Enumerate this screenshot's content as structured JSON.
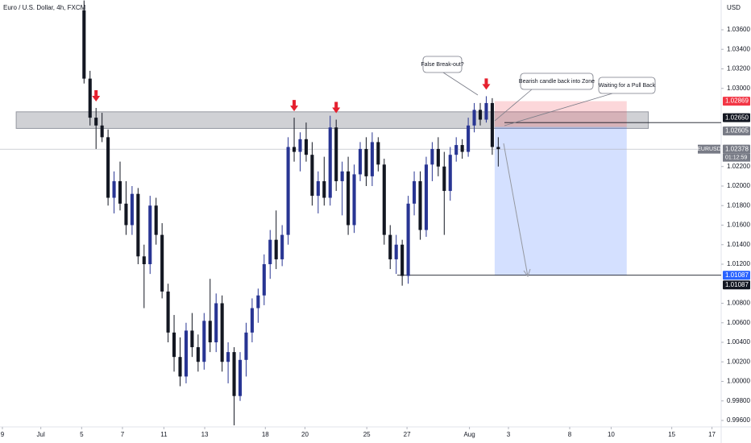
{
  "chart_data": {
    "type": "candlestick",
    "title": "Euro / U.S. Dollar, 4h, FXCM",
    "currency": "USD",
    "symbol": "EURUSD",
    "countdown": "01:12:59",
    "up_color": "#283593",
    "down_color": "#131722",
    "open": [
      1.038,
      1.031,
      1.027,
      1.0262,
      1.025,
      1.0188,
      1.0205,
      1.0182,
      1.016,
      1.0192,
      1.0128,
      1.012,
      1.018,
      1.015,
      1.0092,
      1.005,
      1.0025,
      1.0005,
      1.0052,
      1.0035,
      1.002,
      1.0062,
      1.004,
      1.008,
      1.002,
      1.003,
      0.9985,
      1.0022,
      1.005,
      1.0075,
      1.0088,
      1.012,
      1.0145,
      1.0125,
      1.015,
      1.024,
      1.0235,
      1.0248,
      1.0232,
      1.019,
      1.0205,
      1.0188,
      1.026,
      1.0205,
      1.0215,
      1.016,
      1.0212,
      1.0238,
      1.021,
      1.0245,
      1.0222,
      1.015,
      1.0125,
      1.014,
      1.0108,
      1.0182,
      1.0205,
      1.0155,
      1.0222,
      1.0238,
      1.022,
      1.0195,
      1.0232,
      1.0242,
      1.0235,
      1.0262,
      1.0278,
      1.0268,
      1.0285,
      1.024
    ],
    "high": [
      1.039,
      1.0318,
      1.028,
      1.0275,
      1.0258,
      1.0215,
      1.0225,
      1.0205,
      1.02,
      1.0198,
      1.014,
      1.019,
      1.0188,
      1.0162,
      1.01,
      1.0068,
      1.0045,
      1.006,
      1.007,
      1.0048,
      1.007,
      1.0105,
      1.009,
      1.0088,
      1.004,
      1.0035,
      1.003,
      1.006,
      1.0085,
      1.0095,
      1.013,
      1.0155,
      1.0175,
      1.016,
      1.025,
      1.027,
      1.0255,
      1.0265,
      1.0245,
      1.0215,
      1.023,
      1.0272,
      1.0268,
      1.0225,
      1.023,
      1.0222,
      1.0245,
      1.025,
      1.0255,
      1.025,
      1.0228,
      1.016,
      1.015,
      1.0145,
      1.019,
      1.0215,
      1.0215,
      1.023,
      1.0245,
      1.025,
      1.0235,
      1.024,
      1.025,
      1.0248,
      1.027,
      1.0285,
      1.0285,
      1.0292,
      1.029,
      1.025
    ],
    "low": [
      1.0305,
      1.0262,
      1.0238,
      1.0245,
      1.018,
      1.0172,
      1.0175,
      1.015,
      1.015,
      1.012,
      1.0075,
      1.011,
      1.014,
      1.0085,
      1.004,
      1.001,
      0.9995,
      0.9998,
      1.0025,
      1.001,
      1.0012,
      1.003,
      1.003,
      1.001,
      0.9998,
      0.9955,
      0.998,
      1.0005,
      1.004,
      1.006,
      1.0078,
      1.0105,
      1.0115,
      1.0118,
      1.014,
      1.0225,
      1.0215,
      1.0225,
      1.018,
      1.0172,
      1.018,
      1.018,
      1.0195,
      1.017,
      1.015,
      1.0152,
      1.0205,
      1.02,
      1.02,
      1.0215,
      1.014,
      1.0115,
      1.011,
      1.0098,
      1.01,
      1.017,
      1.0145,
      1.0148,
      1.0205,
      1.021,
      1.015,
      1.0185,
      1.0225,
      1.0228,
      1.023,
      1.0255,
      1.0262,
      1.0265,
      1.0232,
      1.022
    ],
    "close": [
      1.031,
      1.027,
      1.0262,
      1.025,
      1.0188,
      1.0205,
      1.0182,
      1.016,
      1.0192,
      1.0128,
      1.012,
      1.018,
      1.015,
      1.0092,
      1.005,
      1.0025,
      1.0005,
      1.0052,
      1.0035,
      1.002,
      1.0062,
      1.004,
      1.008,
      1.002,
      1.003,
      0.9985,
      1.0022,
      1.005,
      1.0075,
      1.0088,
      1.012,
      1.0145,
      1.0125,
      1.015,
      1.024,
      1.0235,
      1.0248,
      1.0232,
      1.019,
      1.0205,
      1.0188,
      1.026,
      1.0205,
      1.0215,
      1.016,
      1.0212,
      1.0238,
      1.021,
      1.0245,
      1.0222,
      1.015,
      1.0125,
      1.014,
      1.0108,
      1.0182,
      1.0205,
      1.0155,
      1.0222,
      1.0238,
      1.022,
      1.0195,
      1.0232,
      1.0242,
      1.0235,
      1.0262,
      1.0278,
      1.0268,
      1.0285,
      1.024,
      1.02378
    ],
    "xlim": [
      -14,
      106
    ],
    "xticks": [
      {
        "value": -13.6,
        "label": "9"
      },
      {
        "value": -7.2,
        "label": "Jul"
      },
      {
        "value": -0.4,
        "label": "5"
      },
      {
        "value": 6.4,
        "label": "7"
      },
      {
        "value": 13.3,
        "label": "11"
      },
      {
        "value": 20.1,
        "label": "13"
      },
      {
        "value": 30.2,
        "label": "18"
      },
      {
        "value": 36.8,
        "label": "20"
      },
      {
        "value": 47.1,
        "label": "25"
      },
      {
        "value": 53.8,
        "label": "27"
      },
      {
        "value": 64.2,
        "label": "Aug"
      },
      {
        "value": 70.7,
        "label": "3"
      },
      {
        "value": 80.9,
        "label": "8"
      },
      {
        "value": 87.8,
        "label": "10"
      },
      {
        "value": 97.9,
        "label": "15"
      },
      {
        "value": 104.6,
        "label": "17"
      }
    ],
    "ylim": [
      0.99534,
      1.03905
    ],
    "yticks": [
      {
        "value": 1.036,
        "label": "1.03600"
      },
      {
        "value": 1.034,
        "label": "1.03400"
      },
      {
        "value": 1.032,
        "label": "1.03200"
      },
      {
        "value": 1.03,
        "label": "1.03000"
      },
      {
        "value": 1.022,
        "label": "1.02200"
      },
      {
        "value": 1.02,
        "label": "1.02000"
      },
      {
        "value": 1.018,
        "label": "1.01800"
      },
      {
        "value": 1.016,
        "label": "1.01600"
      },
      {
        "value": 1.014,
        "label": "1.01400"
      },
      {
        "value": 1.012,
        "label": "1.01200"
      },
      {
        "value": 1.008,
        "label": "1.00800"
      },
      {
        "value": 1.006,
        "label": "1.00600"
      },
      {
        "value": 1.004,
        "label": "1.00400"
      },
      {
        "value": 1.002,
        "label": "1.00200"
      },
      {
        "value": 1.0,
        "label": "1.00000"
      },
      {
        "value": 0.998,
        "label": "0.99800"
      },
      {
        "value": 0.996,
        "label": "0.99600"
      }
    ],
    "zone": {
      "top": 1.0276,
      "bottom": 1.0259,
      "start": -11.3,
      "end": 94
    },
    "position": {
      "stop": 1.02869,
      "entry": 1.02605,
      "target": 1.01087,
      "start": 68.4,
      "end": 90.4
    },
    "levels": [
      {
        "value": 1.02869,
        "color": "#f23645"
      },
      {
        "value": 1.0265,
        "label": "1.02650",
        "color": "#131722"
      },
      {
        "value": 1.02605,
        "color": "#787b86"
      },
      {
        "value": 1.01087,
        "color": "#2962ff"
      },
      {
        "value": 1.01087,
        "color": "#131722"
      }
    ],
    "current_price": 1.02378,
    "signal_arrows": [
      2,
      35,
      42,
      67
    ],
    "annotations": [
      "False Break-out?",
      "Bearish candle back into Zone",
      "Waiting for a Pull Back"
    ]
  }
}
